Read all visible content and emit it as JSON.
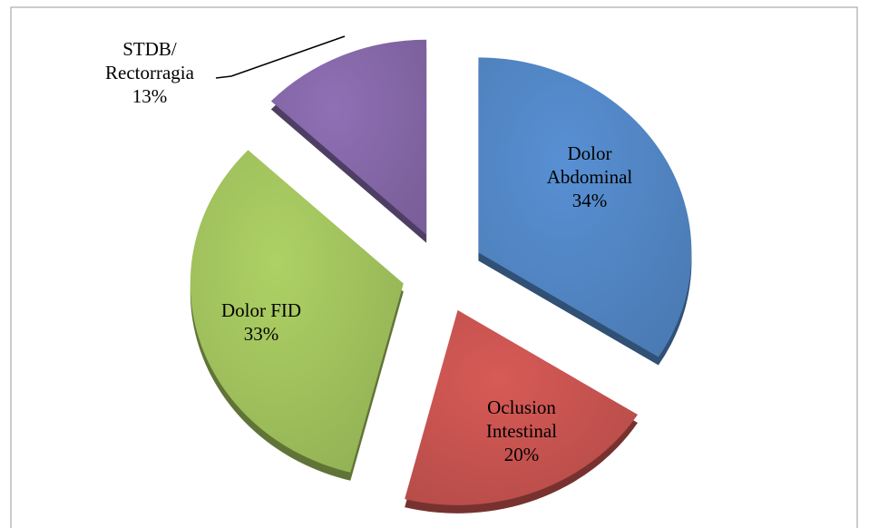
{
  "chart_data": {
    "type": "pie",
    "categories": [
      "Dolor Abdominal",
      "Oclusion Intestinal",
      "Dolor FID",
      "STDB/ Rectorragia"
    ],
    "values": [
      34,
      20,
      33,
      13
    ],
    "value_labels": [
      "34%",
      "20%",
      "33%",
      "13%"
    ],
    "colors": [
      "#4f81bd",
      "#c0504d",
      "#9bbb59",
      "#8064a2"
    ]
  }
}
